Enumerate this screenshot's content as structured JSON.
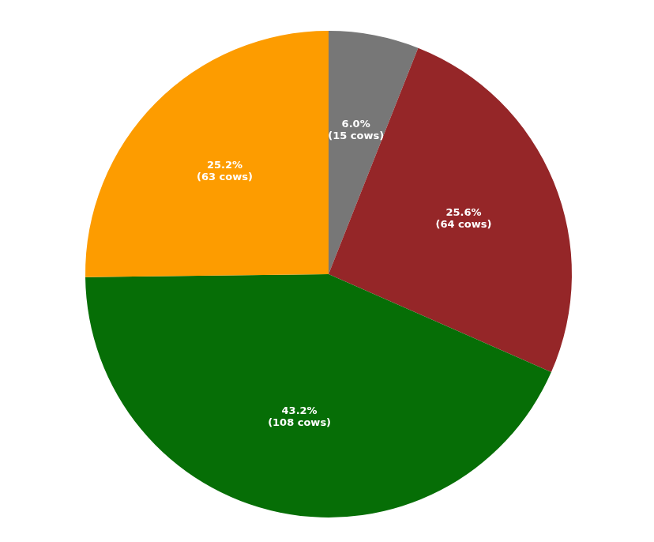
{
  "chart_data": {
    "type": "pie",
    "values": [
      6.0,
      25.6,
      43.2,
      25.2
    ],
    "value_labels": [
      "6.0%\n(15 cows)",
      "25.6%\n(64 cows)",
      "43.2%\n(108 cows)",
      "25.2%\n(63 cows)"
    ],
    "colors": [
      "#777777",
      "#952628",
      "#066e06",
      "#fd9c00"
    ],
    "data_labels": true,
    "legend": false
  }
}
